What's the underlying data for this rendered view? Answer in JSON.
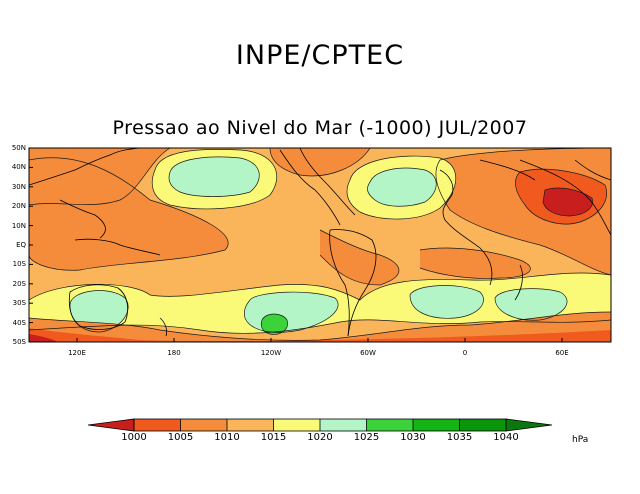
{
  "title": "INPE/CPTEC",
  "subtitle": "Pressao ao Nivel do Mar (-1000) JUL/2007",
  "legend": {
    "units": "hPa",
    "ticks": [
      "1000",
      "1005",
      "1010",
      "1015",
      "1020",
      "1025",
      "1030",
      "1035",
      "1040"
    ],
    "colors": [
      "#c81e1e",
      "#f05a1e",
      "#f58c3c",
      "#fab45a",
      "#fafa78",
      "#b4f5c8",
      "#3cd23c",
      "#14b414",
      "#0a960a",
      "#0a780a"
    ]
  },
  "axes": {
    "lat_labels": [
      "50N",
      "40N",
      "30N",
      "20N",
      "10N",
      "EQ",
      "10S",
      "20S",
      "30S",
      "40S",
      "50S"
    ],
    "lon_labels": [
      "120E",
      "180",
      "120W",
      "60W",
      "0",
      "60E"
    ]
  }
}
